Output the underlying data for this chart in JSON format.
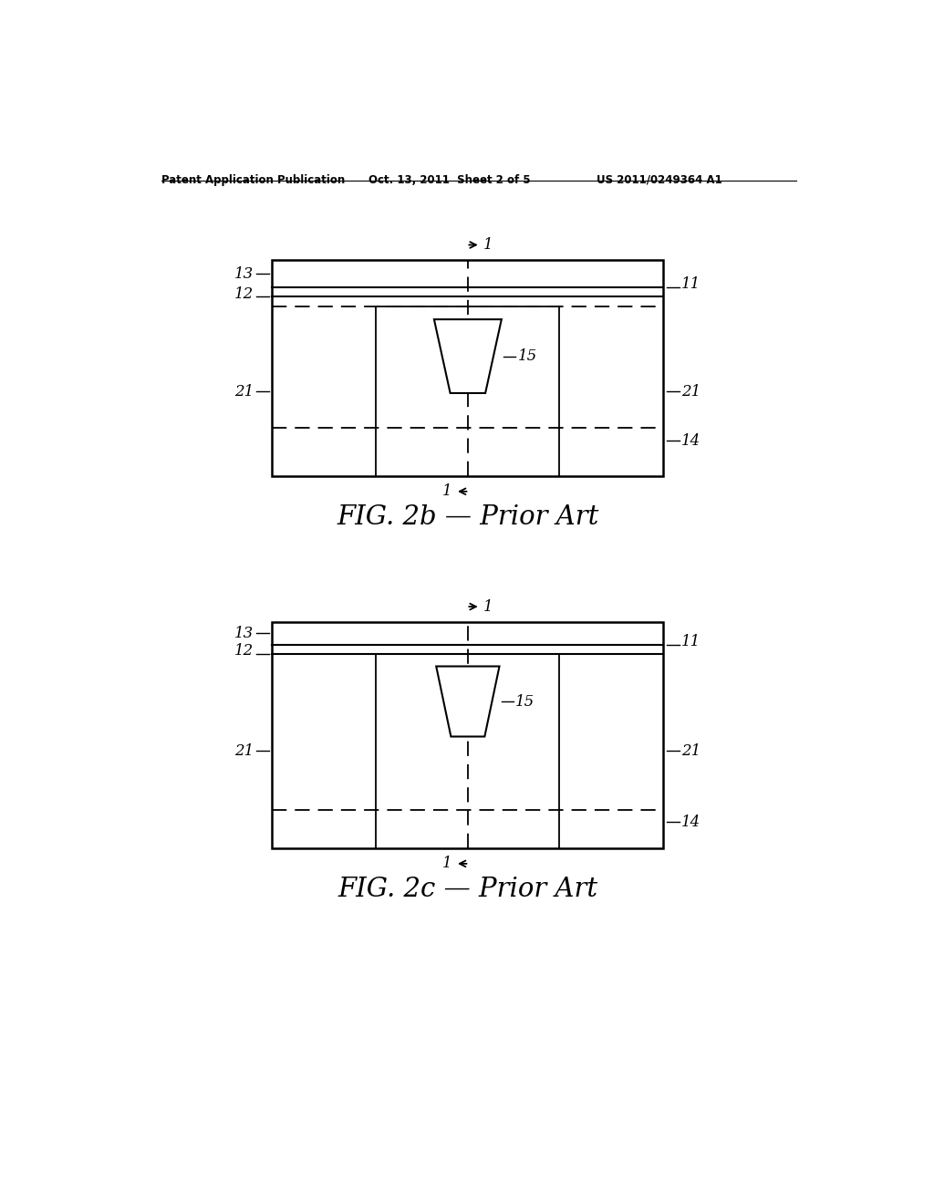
{
  "background_color": "#ffffff",
  "header_text": "Patent Application Publication",
  "header_date": "Oct. 13, 2011  Sheet 2 of 5",
  "header_patent": "US 2011/0249364 A1",
  "fig2b_title": "FIG. 2b — Prior Art",
  "fig2c_title": "FIG. 2c — Prior Art",
  "line_color": "#000000",
  "dashed_color": "#000000"
}
